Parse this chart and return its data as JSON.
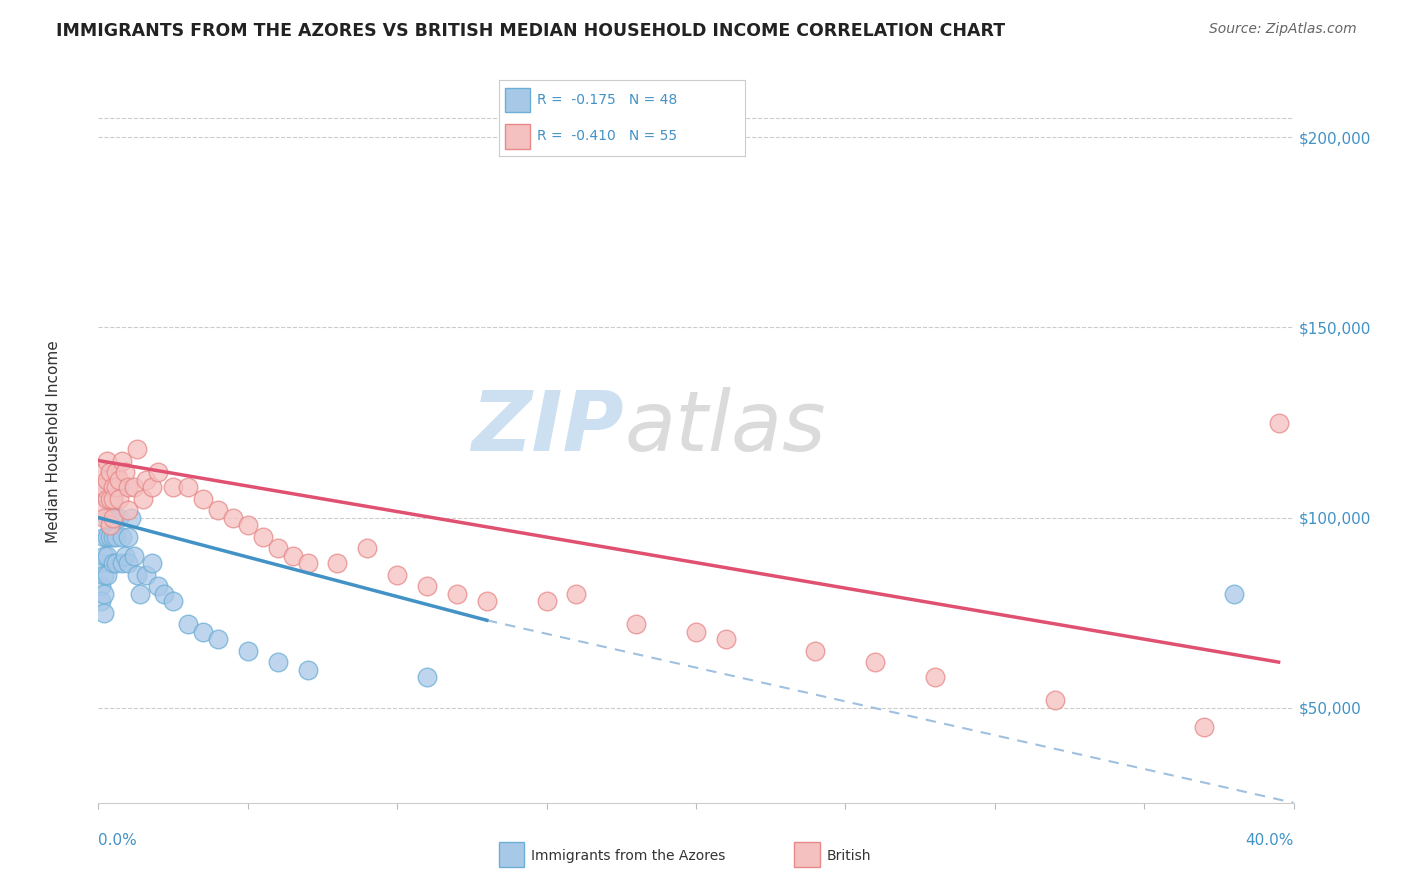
{
  "title": "IMMIGRANTS FROM THE AZORES VS BRITISH MEDIAN HOUSEHOLD INCOME CORRELATION CHART",
  "source": "Source: ZipAtlas.com",
  "ylabel": "Median Household Income",
  "xmin": 0.0,
  "xmax": 0.4,
  "ymin": 25000,
  "ymax": 215000,
  "yticks": [
    50000,
    100000,
    150000,
    200000
  ],
  "ytick_labels": [
    "$50,000",
    "$100,000",
    "$150,000",
    "$200,000"
  ],
  "blue_color": "#a8c8e8",
  "blue_edge": "#6baed6",
  "pink_color": "#f5c0c0",
  "pink_edge": "#e88888",
  "trend_blue": "#4292c6",
  "trend_pink": "#e05070",
  "trend_gray_color": "#a0c0e0",
  "background": "#ffffff",
  "blue_x": [
    0.001,
    0.001,
    0.001,
    0.002,
    0.002,
    0.002,
    0.002,
    0.002,
    0.003,
    0.003,
    0.003,
    0.003,
    0.003,
    0.004,
    0.004,
    0.004,
    0.004,
    0.005,
    0.005,
    0.005,
    0.005,
    0.006,
    0.006,
    0.006,
    0.007,
    0.007,
    0.008,
    0.008,
    0.009,
    0.01,
    0.01,
    0.011,
    0.012,
    0.013,
    0.014,
    0.016,
    0.018,
    0.02,
    0.022,
    0.025,
    0.03,
    0.035,
    0.04,
    0.05,
    0.06,
    0.07,
    0.11,
    0.38
  ],
  "blue_y": [
    88000,
    82000,
    78000,
    95000,
    90000,
    85000,
    80000,
    75000,
    105000,
    100000,
    95000,
    90000,
    85000,
    112000,
    108000,
    100000,
    95000,
    105000,
    100000,
    95000,
    88000,
    100000,
    95000,
    88000,
    108000,
    100000,
    95000,
    88000,
    90000,
    95000,
    88000,
    100000,
    90000,
    85000,
    80000,
    85000,
    88000,
    82000,
    80000,
    78000,
    72000,
    70000,
    68000,
    65000,
    62000,
    60000,
    58000,
    80000
  ],
  "pink_x": [
    0.001,
    0.001,
    0.002,
    0.002,
    0.002,
    0.003,
    0.003,
    0.003,
    0.004,
    0.004,
    0.004,
    0.005,
    0.005,
    0.005,
    0.006,
    0.006,
    0.007,
    0.007,
    0.008,
    0.009,
    0.01,
    0.01,
    0.012,
    0.013,
    0.015,
    0.016,
    0.018,
    0.02,
    0.025,
    0.03,
    0.035,
    0.04,
    0.045,
    0.05,
    0.055,
    0.06,
    0.065,
    0.07,
    0.08,
    0.09,
    0.1,
    0.11,
    0.12,
    0.13,
    0.15,
    0.16,
    0.18,
    0.2,
    0.21,
    0.24,
    0.26,
    0.28,
    0.32,
    0.37,
    0.395
  ],
  "pink_y": [
    108000,
    102000,
    112000,
    108000,
    100000,
    115000,
    110000,
    105000,
    112000,
    105000,
    98000,
    108000,
    105000,
    100000,
    112000,
    108000,
    110000,
    105000,
    115000,
    112000,
    108000,
    102000,
    108000,
    118000,
    105000,
    110000,
    108000,
    112000,
    108000,
    108000,
    105000,
    102000,
    100000,
    98000,
    95000,
    92000,
    90000,
    88000,
    88000,
    92000,
    85000,
    82000,
    80000,
    78000,
    78000,
    80000,
    72000,
    70000,
    68000,
    65000,
    62000,
    58000,
    52000,
    45000,
    125000
  ],
  "blue_trend_x0": 0.0,
  "blue_trend_y0": 100000,
  "blue_trend_x1": 0.13,
  "blue_trend_y1": 73000,
  "pink_trend_x0": 0.0,
  "pink_trend_y0": 115000,
  "pink_trend_x1": 0.395,
  "pink_trend_y1": 62000,
  "gray_trend_x0": 0.13,
  "gray_trend_y0": 73000,
  "gray_trend_x1": 0.4,
  "gray_trend_y1": 25000
}
